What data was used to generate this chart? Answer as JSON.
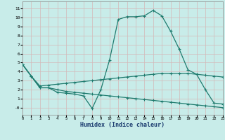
{
  "xlabel": "Humidex (Indice chaleur)",
  "x_values": [
    0,
    1,
    2,
    3,
    4,
    5,
    6,
    7,
    8,
    9,
    10,
    11,
    12,
    13,
    14,
    15,
    16,
    17,
    18,
    19,
    20,
    21,
    22,
    23
  ],
  "line_main": [
    4.8,
    3.5,
    2.2,
    2.2,
    1.7,
    1.6,
    1.5,
    1.3,
    -0.1,
    2.0,
    5.3,
    9.8,
    10.1,
    10.1,
    10.2,
    10.8,
    10.2,
    8.5,
    6.5,
    4.2,
    3.7,
    2.0,
    0.5,
    0.4
  ],
  "line_upper": [
    4.8,
    3.5,
    2.4,
    2.5,
    2.6,
    2.7,
    2.8,
    2.9,
    3.0,
    3.1,
    3.2,
    3.3,
    3.4,
    3.5,
    3.6,
    3.7,
    3.8,
    3.8,
    3.8,
    3.8,
    3.7,
    3.6,
    3.5,
    3.4
  ],
  "line_lower": [
    4.8,
    3.5,
    2.2,
    2.2,
    2.0,
    1.8,
    1.7,
    1.6,
    1.5,
    1.4,
    1.3,
    1.2,
    1.1,
    1.0,
    0.9,
    0.8,
    0.7,
    0.6,
    0.5,
    0.4,
    0.3,
    0.2,
    0.1,
    0.0
  ],
  "bg_color": "#c8ece9",
  "line_color": "#1e7b6e",
  "grid_color": "#d4b8b8",
  "ylim": [
    -0.8,
    11.8
  ],
  "yticks": [
    0,
    1,
    2,
    3,
    4,
    5,
    6,
    7,
    8,
    9,
    10,
    11
  ],
  "ytick_labels": [
    "-0",
    "1",
    "2",
    "3",
    "4",
    "5",
    "6",
    "7",
    "8",
    "9",
    "10",
    "11"
  ],
  "xlim": [
    0,
    23
  ]
}
